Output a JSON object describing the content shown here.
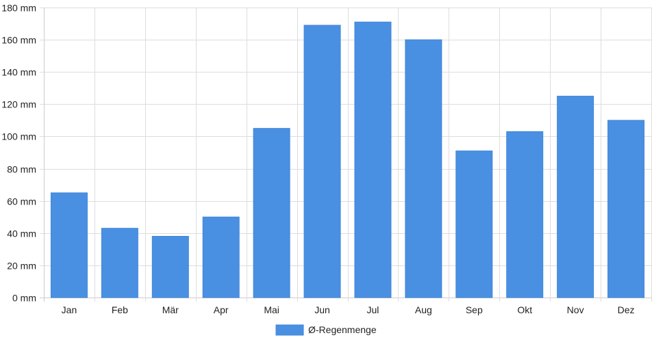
{
  "chart_data": {
    "type": "bar",
    "categories": [
      "Jan",
      "Feb",
      "Mär",
      "Apr",
      "Mai",
      "Jun",
      "Jul",
      "Aug",
      "Sep",
      "Okt",
      "Nov",
      "Dez"
    ],
    "series": [
      {
        "name": "Ø-Regenmenge",
        "color": "#4a90e2",
        "values": [
          65,
          43,
          38,
          50,
          105,
          169,
          171,
          160,
          91,
          103,
          125,
          110
        ]
      }
    ],
    "ylim": [
      0,
      180
    ],
    "y_ticks": [
      0,
      20,
      40,
      60,
      80,
      100,
      120,
      140,
      160,
      180
    ],
    "y_unit": "mm",
    "grid": true,
    "legend_position": "bottom-center"
  }
}
